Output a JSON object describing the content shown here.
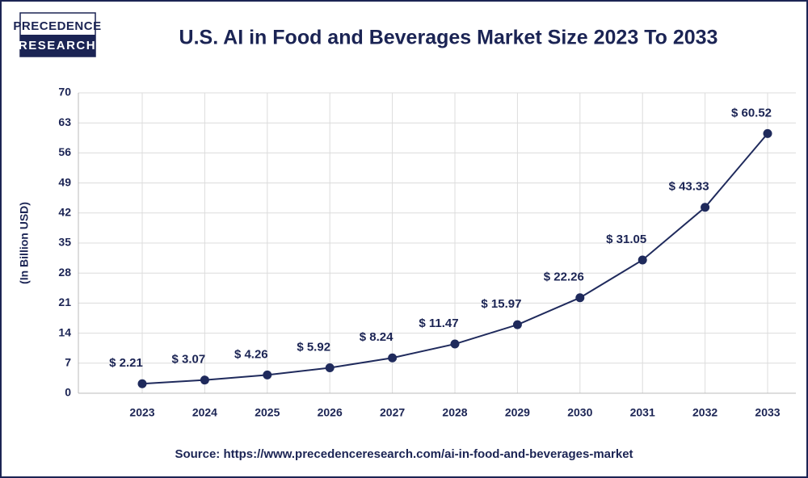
{
  "logo": {
    "line1": "PRECEDENCE",
    "line2": "RESEARCH"
  },
  "chart_data": {
    "type": "line",
    "title": "U.S. AI in Food and Beverages Market Size 2023 To 2033",
    "y_label": "(In Billion USD)",
    "source": "Source: https://www.precedenceresearch.com/ai-in-food-and-beverages-market",
    "categories": [
      "2023",
      "2024",
      "2025",
      "2026",
      "2027",
      "2028",
      "2029",
      "2030",
      "2031",
      "2032",
      "2033"
    ],
    "values": [
      2.21,
      3.07,
      4.26,
      5.92,
      8.24,
      11.47,
      15.97,
      22.26,
      31.05,
      43.33,
      60.52
    ],
    "value_labels": [
      "$ 2.21",
      "$ 3.07",
      "$ 4.26",
      "$ 5.92",
      "$ 8.24",
      "$ 11.47",
      "$ 15.97",
      "$ 22.26",
      "$ 31.05",
      "$ 43.33",
      "$ 60.52"
    ],
    "color": "#1f2a5c",
    "ylim": [
      0,
      70
    ],
    "yticks": [
      0,
      7,
      14,
      21,
      28,
      35,
      42,
      49,
      56,
      63,
      70
    ],
    "grid": true
  }
}
